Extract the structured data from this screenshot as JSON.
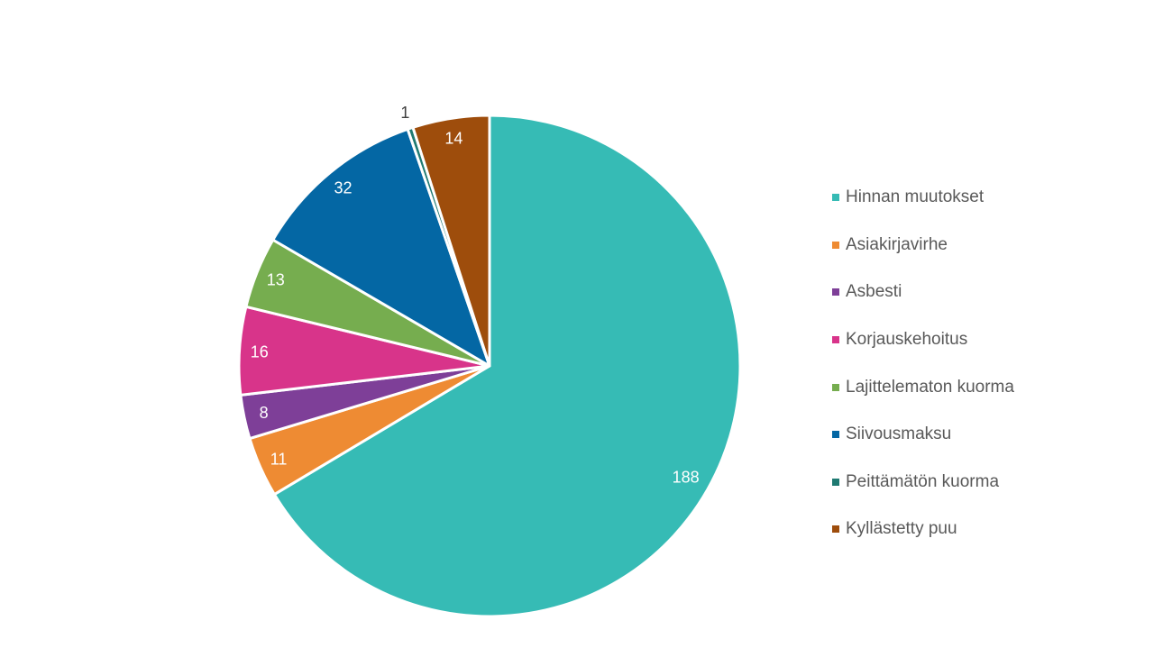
{
  "chart_data": {
    "type": "pie",
    "title": "",
    "start_angle_deg": 0,
    "direction": "clockwise",
    "legend_position": "right",
    "slices": [
      {
        "label": "Hinnan muutokset",
        "value": 188,
        "color": "#36BBB5"
      },
      {
        "label": "Asiakirjavirhe",
        "value": 11,
        "color": "#EE8B33"
      },
      {
        "label": "Asbesti",
        "value": 8,
        "color": "#7E3F98"
      },
      {
        "label": "Korjauskehoitus",
        "value": 16,
        "color": "#D8348A"
      },
      {
        "label": "Lajittelematon kuorma",
        "value": 13,
        "color": "#76AD4F"
      },
      {
        "label": "Siivousmaksu",
        "value": 32,
        "color": "#0467A4"
      },
      {
        "label": "Peittämätön kuorma",
        "value": 1,
        "color": "#1F7A72"
      },
      {
        "label": "Kyllästetty puu",
        "value": 14,
        "color": "#9E4D0C"
      }
    ]
  }
}
